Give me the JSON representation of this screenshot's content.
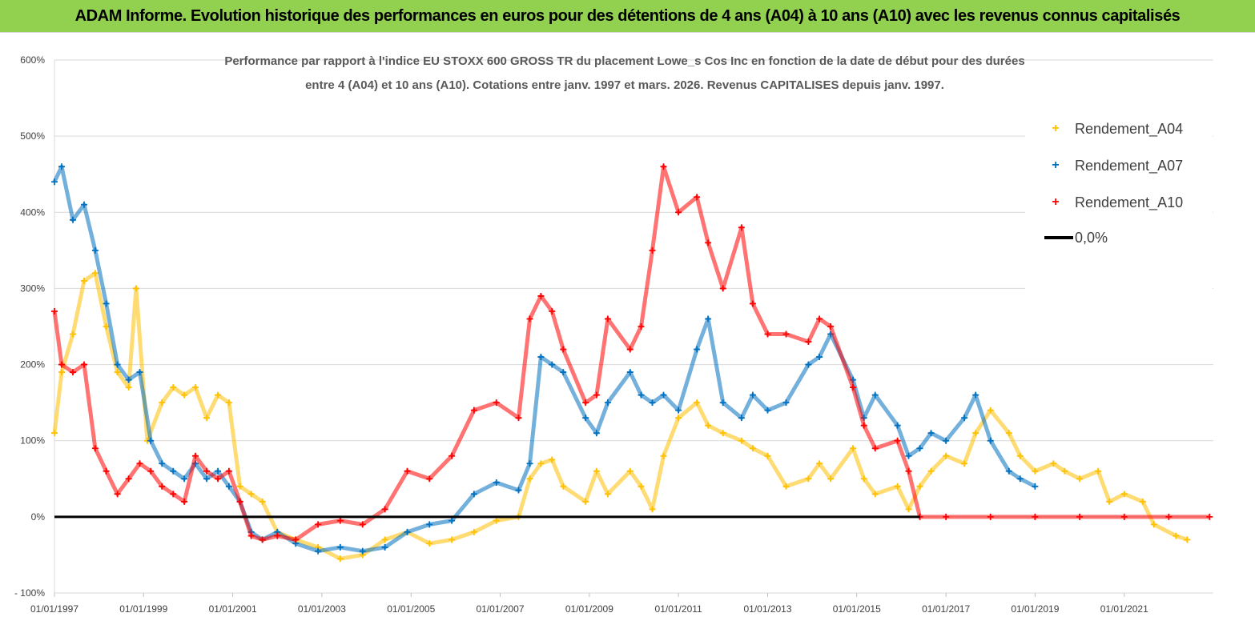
{
  "header": {
    "banner": "ADAM Informe. Evolution historique des performances en euros pour des détentions de 4 ans (A04) à 10 ans (A10) avec les revenus connus capitalisés"
  },
  "colors": {
    "banner_bg": "#92d050",
    "a04": "#ffc000",
    "a07": "#0070c0",
    "a10": "#ff0000",
    "zero": "#000000"
  },
  "chart_data": {
    "type": "scatter",
    "title": "",
    "subtitle_lines": [
      "Performance par rapport à l'indice EU STOXX 600 GROSS TR  du placement Lowe_s Cos Inc en fonction de la date de début pour des durées",
      "entre 4 (A04) et 10 ans (A10). Cotations entre janv. 1997 et mars. 2026. Revenus CAPITALISES depuis janv. 1997."
    ],
    "xlabel": "",
    "ylabel": "",
    "x_type": "date",
    "xlim": [
      "1997-01-01",
      "2023-01-01"
    ],
    "ylim": [
      -1.0,
      6.0
    ],
    "y_ticks": [
      "- 100%",
      "0%",
      "100%",
      "200%",
      "300%",
      "400%",
      "500%",
      "600%"
    ],
    "x_ticks": [
      "01/01/1997",
      "01/01/1999",
      "01/01/2001",
      "01/01/2003",
      "01/01/2005",
      "01/01/2007",
      "01/01/2009",
      "01/01/2011",
      "01/01/2013",
      "01/01/2015",
      "01/01/2017",
      "01/01/2019",
      "01/01/2021"
    ],
    "grid": "horizontal",
    "legend_position": "top-right",
    "series": [
      {
        "name": "Rendement_A04",
        "marker": "+",
        "color": "#ffc000",
        "points": [
          [
            "1997-01-01",
            1.1
          ],
          [
            "1997-03-01",
            1.9
          ],
          [
            "1997-06-01",
            2.4
          ],
          [
            "1997-09-01",
            3.1
          ],
          [
            "1997-12-01",
            3.2
          ],
          [
            "1998-03-01",
            2.5
          ],
          [
            "1998-06-01",
            1.9
          ],
          [
            "1998-09-01",
            1.7
          ],
          [
            "1998-11-01",
            3.0
          ],
          [
            "1999-02-01",
            1.0
          ],
          [
            "1999-06-01",
            1.5
          ],
          [
            "1999-09-01",
            1.7
          ],
          [
            "1999-12-01",
            1.6
          ],
          [
            "2000-03-01",
            1.7
          ],
          [
            "2000-06-01",
            1.3
          ],
          [
            "2000-09-01",
            1.6
          ],
          [
            "2000-12-01",
            1.5
          ],
          [
            "2001-03-01",
            0.4
          ],
          [
            "2001-06-01",
            0.3
          ],
          [
            "2001-09-01",
            0.2
          ],
          [
            "2002-01-01",
            -0.2
          ],
          [
            "2002-06-01",
            -0.3
          ],
          [
            "2002-12-01",
            -0.4
          ],
          [
            "2003-06-01",
            -0.55
          ],
          [
            "2003-12-01",
            -0.5
          ],
          [
            "2004-06-01",
            -0.3
          ],
          [
            "2004-12-01",
            -0.2
          ],
          [
            "2005-06-01",
            -0.35
          ],
          [
            "2005-12-01",
            -0.3
          ],
          [
            "2006-06-01",
            -0.2
          ],
          [
            "2006-12-01",
            -0.05
          ],
          [
            "2007-06-01",
            0.0
          ],
          [
            "2007-09-01",
            0.5
          ],
          [
            "2007-12-01",
            0.7
          ],
          [
            "2008-03-01",
            0.75
          ],
          [
            "2008-06-01",
            0.4
          ],
          [
            "2008-12-01",
            0.2
          ],
          [
            "2009-03-01",
            0.6
          ],
          [
            "2009-06-01",
            0.3
          ],
          [
            "2009-12-01",
            0.6
          ],
          [
            "2010-03-01",
            0.4
          ],
          [
            "2010-06-01",
            0.1
          ],
          [
            "2010-09-01",
            0.8
          ],
          [
            "2011-01-01",
            1.3
          ],
          [
            "2011-06-01",
            1.5
          ],
          [
            "2011-09-01",
            1.2
          ],
          [
            "2012-01-01",
            1.1
          ],
          [
            "2012-06-01",
            1.0
          ],
          [
            "2012-09-01",
            0.9
          ],
          [
            "2013-01-01",
            0.8
          ],
          [
            "2013-06-01",
            0.4
          ],
          [
            "2013-12-01",
            0.5
          ],
          [
            "2014-03-01",
            0.7
          ],
          [
            "2014-06-01",
            0.5
          ],
          [
            "2014-12-01",
            0.9
          ],
          [
            "2015-03-01",
            0.5
          ],
          [
            "2015-06-01",
            0.3
          ],
          [
            "2015-12-01",
            0.4
          ],
          [
            "2016-03-01",
            0.1
          ],
          [
            "2016-06-01",
            0.4
          ],
          [
            "2016-09-01",
            0.6
          ],
          [
            "2017-01-01",
            0.8
          ],
          [
            "2017-06-01",
            0.7
          ],
          [
            "2017-09-01",
            1.1
          ],
          [
            "2018-01-01",
            1.4
          ],
          [
            "2018-06-01",
            1.1
          ],
          [
            "2018-09-01",
            0.8
          ],
          [
            "2019-01-01",
            0.6
          ],
          [
            "2019-06-01",
            0.7
          ],
          [
            "2019-09-01",
            0.6
          ],
          [
            "2020-01-01",
            0.5
          ],
          [
            "2020-06-01",
            0.6
          ],
          [
            "2020-09-01",
            0.2
          ],
          [
            "2021-01-01",
            0.3
          ],
          [
            "2021-06-01",
            0.2
          ],
          [
            "2021-09-01",
            -0.1
          ],
          [
            "2022-03-01",
            -0.25
          ],
          [
            "2022-06-01",
            -0.3
          ]
        ]
      },
      {
        "name": "Rendement_A07",
        "marker": "+",
        "color": "#0070c0",
        "points": [
          [
            "1997-01-01",
            4.4
          ],
          [
            "1997-03-01",
            4.6
          ],
          [
            "1997-06-01",
            3.9
          ],
          [
            "1997-09-01",
            4.1
          ],
          [
            "1997-12-01",
            3.5
          ],
          [
            "1998-03-01",
            2.8
          ],
          [
            "1998-06-01",
            2.0
          ],
          [
            "1998-09-01",
            1.8
          ],
          [
            "1998-12-01",
            1.9
          ],
          [
            "1999-03-01",
            1.0
          ],
          [
            "1999-06-01",
            0.7
          ],
          [
            "1999-09-01",
            0.6
          ],
          [
            "1999-12-01",
            0.5
          ],
          [
            "2000-03-01",
            0.7
          ],
          [
            "2000-06-01",
            0.5
          ],
          [
            "2000-09-01",
            0.6
          ],
          [
            "2000-12-01",
            0.4
          ],
          [
            "2001-03-01",
            0.2
          ],
          [
            "2001-06-01",
            -0.2
          ],
          [
            "2001-09-01",
            -0.3
          ],
          [
            "2002-01-01",
            -0.2
          ],
          [
            "2002-06-01",
            -0.35
          ],
          [
            "2002-12-01",
            -0.45
          ],
          [
            "2003-06-01",
            -0.4
          ],
          [
            "2003-12-01",
            -0.45
          ],
          [
            "2004-06-01",
            -0.4
          ],
          [
            "2004-12-01",
            -0.2
          ],
          [
            "2005-06-01",
            -0.1
          ],
          [
            "2005-12-01",
            -0.05
          ],
          [
            "2006-06-01",
            0.3
          ],
          [
            "2006-12-01",
            0.45
          ],
          [
            "2007-06-01",
            0.35
          ],
          [
            "2007-09-01",
            0.7
          ],
          [
            "2007-12-01",
            2.1
          ],
          [
            "2008-03-01",
            2.0
          ],
          [
            "2008-06-01",
            1.9
          ],
          [
            "2008-12-01",
            1.3
          ],
          [
            "2009-03-01",
            1.1
          ],
          [
            "2009-06-01",
            1.5
          ],
          [
            "2009-12-01",
            1.9
          ],
          [
            "2010-03-01",
            1.6
          ],
          [
            "2010-06-01",
            1.5
          ],
          [
            "2010-09-01",
            1.6
          ],
          [
            "2011-01-01",
            1.4
          ],
          [
            "2011-06-01",
            2.2
          ],
          [
            "2011-09-01",
            2.6
          ],
          [
            "2012-01-01",
            1.5
          ],
          [
            "2012-06-01",
            1.3
          ],
          [
            "2012-09-01",
            1.6
          ],
          [
            "2013-01-01",
            1.4
          ],
          [
            "2013-06-01",
            1.5
          ],
          [
            "2013-12-01",
            2.0
          ],
          [
            "2014-03-01",
            2.1
          ],
          [
            "2014-06-01",
            2.4
          ],
          [
            "2014-12-01",
            1.8
          ],
          [
            "2015-03-01",
            1.3
          ],
          [
            "2015-06-01",
            1.6
          ],
          [
            "2015-12-01",
            1.2
          ],
          [
            "2016-03-01",
            0.8
          ],
          [
            "2016-06-01",
            0.9
          ],
          [
            "2016-09-01",
            1.1
          ],
          [
            "2017-01-01",
            1.0
          ],
          [
            "2017-06-01",
            1.3
          ],
          [
            "2017-09-01",
            1.6
          ],
          [
            "2018-01-01",
            1.0
          ],
          [
            "2018-06-01",
            0.6
          ],
          [
            "2018-09-01",
            0.5
          ],
          [
            "2019-01-01",
            0.4
          ]
        ]
      },
      {
        "name": "Rendement_A10",
        "marker": "+",
        "color": "#ff0000",
        "points": [
          [
            "1997-01-01",
            2.7
          ],
          [
            "1997-03-01",
            2.0
          ],
          [
            "1997-06-01",
            1.9
          ],
          [
            "1997-09-01",
            2.0
          ],
          [
            "1997-12-01",
            0.9
          ],
          [
            "1998-03-01",
            0.6
          ],
          [
            "1998-06-01",
            0.3
          ],
          [
            "1998-09-01",
            0.5
          ],
          [
            "1998-12-01",
            0.7
          ],
          [
            "1999-03-01",
            0.6
          ],
          [
            "1999-06-01",
            0.4
          ],
          [
            "1999-09-01",
            0.3
          ],
          [
            "1999-12-01",
            0.2
          ],
          [
            "2000-03-01",
            0.8
          ],
          [
            "2000-06-01",
            0.6
          ],
          [
            "2000-09-01",
            0.5
          ],
          [
            "2000-12-01",
            0.6
          ],
          [
            "2001-03-01",
            0.2
          ],
          [
            "2001-06-01",
            -0.25
          ],
          [
            "2001-09-01",
            -0.3
          ],
          [
            "2002-01-01",
            -0.25
          ],
          [
            "2002-06-01",
            -0.3
          ],
          [
            "2002-12-01",
            -0.1
          ],
          [
            "2003-06-01",
            -0.05
          ],
          [
            "2003-12-01",
            -0.1
          ],
          [
            "2004-06-01",
            0.1
          ],
          [
            "2004-12-01",
            0.6
          ],
          [
            "2005-06-01",
            0.5
          ],
          [
            "2005-12-01",
            0.8
          ],
          [
            "2006-06-01",
            1.4
          ],
          [
            "2006-12-01",
            1.5
          ],
          [
            "2007-06-01",
            1.3
          ],
          [
            "2007-09-01",
            2.6
          ],
          [
            "2007-12-01",
            2.9
          ],
          [
            "2008-03-01",
            2.7
          ],
          [
            "2008-06-01",
            2.2
          ],
          [
            "2008-12-01",
            1.5
          ],
          [
            "2009-03-01",
            1.6
          ],
          [
            "2009-06-01",
            2.6
          ],
          [
            "2009-12-01",
            2.2
          ],
          [
            "2010-03-01",
            2.5
          ],
          [
            "2010-06-01",
            3.5
          ],
          [
            "2010-09-01",
            4.6
          ],
          [
            "2011-01-01",
            4.0
          ],
          [
            "2011-06-01",
            4.2
          ],
          [
            "2011-09-01",
            3.6
          ],
          [
            "2012-01-01",
            3.0
          ],
          [
            "2012-06-01",
            3.8
          ],
          [
            "2012-09-01",
            2.8
          ],
          [
            "2013-01-01",
            2.4
          ],
          [
            "2013-06-01",
            2.4
          ],
          [
            "2013-12-01",
            2.3
          ],
          [
            "2014-03-01",
            2.6
          ],
          [
            "2014-06-01",
            2.5
          ],
          [
            "2014-12-01",
            1.7
          ],
          [
            "2015-03-01",
            1.2
          ],
          [
            "2015-06-01",
            0.9
          ],
          [
            "2015-12-01",
            1.0
          ],
          [
            "2016-03-01",
            0.6
          ],
          [
            "2016-06-01",
            0.0
          ],
          [
            "2017-01-01",
            0.0
          ],
          [
            "2018-01-01",
            0.0
          ],
          [
            "2019-01-01",
            0.0
          ],
          [
            "2020-01-01",
            0.0
          ],
          [
            "2021-01-01",
            0.0
          ],
          [
            "2022-01-01",
            0.0
          ],
          [
            "2022-12-01",
            0.0
          ]
        ]
      },
      {
        "name": "0,0%",
        "marker": "line",
        "color": "#000000",
        "points": [
          [
            "1997-01-01",
            0.0
          ],
          [
            "2016-06-01",
            0.0
          ]
        ]
      }
    ]
  }
}
